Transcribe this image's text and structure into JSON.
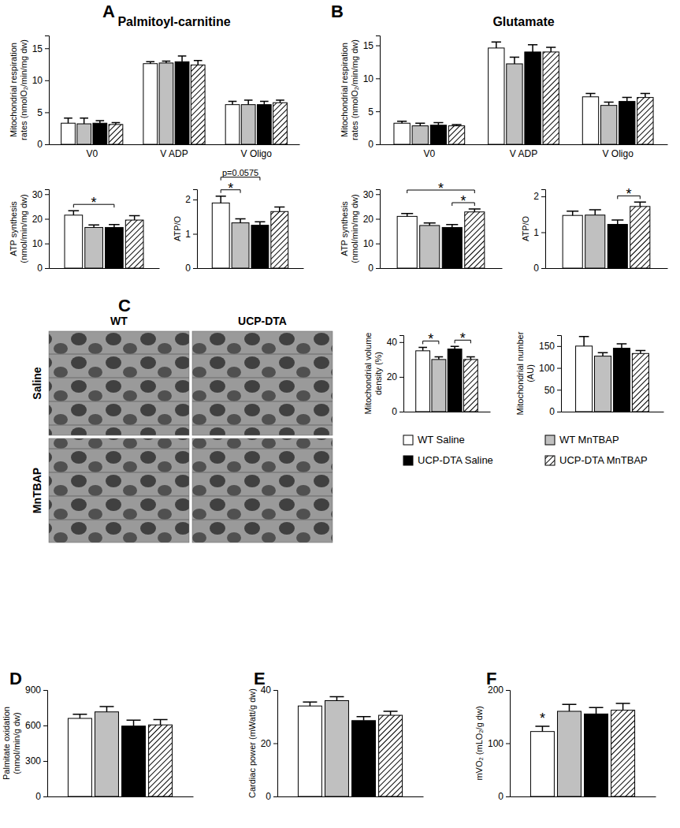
{
  "panel_labels": [
    "A",
    "B",
    "C",
    "D",
    "E",
    "F"
  ],
  "micrographs": {
    "columns": [
      "WT",
      "UCP-DTA"
    ],
    "rows": [
      "Saline",
      "MnTBAP"
    ]
  },
  "chart_data": [
    {
      "type": "bar",
      "title": "Palmitoyl-carnitine",
      "y_label": "Mitochondrial respiration rates (nmolO₂/min/mg dw)",
      "categories": [
        "V0",
        "V ADP",
        "V Oligo"
      ],
      "ylim": [
        0,
        17
      ],
      "yticks": [
        0,
        5,
        10,
        15
      ],
      "series": [
        {
          "name": "WT Saline",
          "color": "#ffffff",
          "values": [
            3.3,
            12.6,
            6.2
          ],
          "errors": [
            0.8,
            0.3,
            0.5
          ]
        },
        {
          "name": "WT MnTBAP",
          "color": "#c0c0c0",
          "values": [
            3.2,
            12.7,
            6.2
          ],
          "errors": [
            0.9,
            0.3,
            0.7
          ]
        },
        {
          "name": "UCP-DTA Saline",
          "color": "#000000",
          "values": [
            3.3,
            12.9,
            6.2
          ],
          "errors": [
            0.4,
            0.9,
            0.5
          ]
        },
        {
          "name": "UCP-DTA MnTBAP",
          "color": "#000000",
          "values": [
            3.1,
            12.4,
            6.5
          ],
          "errors": [
            0.3,
            0.7,
            0.4
          ]
        }
      ]
    },
    {
      "type": "bar",
      "y_label": "ATP synthesis (nmol/min/mg dw)",
      "categories": [
        null
      ],
      "ylim": [
        0,
        32
      ],
      "yticks": [
        0,
        10,
        20,
        30
      ],
      "series": [
        {
          "color": "#ffffff",
          "values": [
            21.5
          ],
          "errors": [
            1.8
          ]
        },
        {
          "color": "#c0c0c0",
          "values": [
            16.5
          ],
          "errors": [
            1.0
          ]
        },
        {
          "color": "#000000",
          "values": [
            16.5
          ],
          "errors": [
            1.2
          ]
        },
        {
          "color": "#000000",
          "values": [
            19.5
          ],
          "errors": [
            1.8
          ]
        }
      ],
      "annotations": [
        {
          "text": "*",
          "from": 0,
          "to": 2
        }
      ]
    },
    {
      "type": "bar",
      "y_label": "ATP/O",
      "categories": [
        null
      ],
      "ylim": [
        0,
        2.3
      ],
      "yticks": [
        0,
        1,
        2
      ],
      "series": [
        {
          "color": "#ffffff",
          "values": [
            1.9
          ],
          "errors": [
            0.2
          ]
        },
        {
          "color": "#c0c0c0",
          "values": [
            1.32
          ],
          "errors": [
            0.12
          ]
        },
        {
          "color": "#000000",
          "values": [
            1.25
          ],
          "errors": [
            0.1
          ]
        },
        {
          "color": "#000000",
          "values": [
            1.65
          ],
          "errors": [
            0.13
          ]
        }
      ],
      "annotations": [
        {
          "text": "*",
          "from": 0,
          "to": 1
        },
        {
          "text": "p=0.0575",
          "from": 0,
          "to": 2
        }
      ]
    },
    {
      "type": "bar",
      "title": "Glutamate",
      "y_label": "Mitochondrial respiration rates (nmolO₂/min/mg dw)",
      "categories": [
        "V0",
        "V ADP",
        "V Oligo"
      ],
      "ylim": [
        0,
        16.5
      ],
      "yticks": [
        0,
        5,
        10,
        15
      ],
      "series": [
        {
          "color": "#ffffff",
          "values": [
            3.2,
            14.6,
            7.2
          ],
          "errors": [
            0.3,
            0.9,
            0.5
          ]
        },
        {
          "color": "#c0c0c0",
          "values": [
            2.8,
            12.2,
            5.9
          ],
          "errors": [
            0.4,
            1.0,
            0.5
          ]
        },
        {
          "color": "#000000",
          "values": [
            2.9,
            14.0,
            6.5
          ],
          "errors": [
            0.4,
            1.1,
            0.6
          ]
        },
        {
          "color": "#000000",
          "values": [
            2.8,
            14.0,
            7.1
          ],
          "errors": [
            0.2,
            0.7,
            0.6
          ]
        }
      ]
    },
    {
      "type": "bar",
      "y_label": "ATP synthesis (nmol/min/mg dw)",
      "categories": [
        null
      ],
      "ylim": [
        0,
        32
      ],
      "yticks": [
        0,
        10,
        20,
        30
      ],
      "series": [
        {
          "color": "#ffffff",
          "values": [
            21.0
          ],
          "errors": [
            1.2
          ]
        },
        {
          "color": "#c0c0c0",
          "values": [
            17.3
          ],
          "errors": [
            1.0
          ]
        },
        {
          "color": "#000000",
          "values": [
            16.5
          ],
          "errors": [
            1.2
          ]
        },
        {
          "color": "#000000",
          "values": [
            22.8
          ],
          "errors": [
            1.2
          ]
        }
      ],
      "annotations": [
        {
          "text": "*",
          "from": 2,
          "to": 3
        },
        {
          "text": "*",
          "from": 0,
          "to": 3
        }
      ]
    },
    {
      "type": "bar",
      "y_label": "ATP/O",
      "categories": [
        null
      ],
      "ylim": [
        0,
        2.2
      ],
      "yticks": [
        0,
        1,
        2
      ],
      "series": [
        {
          "color": "#ffffff",
          "values": [
            1.47
          ],
          "errors": [
            0.12
          ]
        },
        {
          "color": "#c0c0c0",
          "values": [
            1.48
          ],
          "errors": [
            0.15
          ]
        },
        {
          "color": "#000000",
          "values": [
            1.22
          ],
          "errors": [
            0.12
          ]
        },
        {
          "color": "#000000",
          "values": [
            1.72
          ],
          "errors": [
            0.12
          ]
        }
      ],
      "annotations": [
        {
          "text": "*",
          "from": 2,
          "to": 3
        }
      ]
    },
    {
      "type": "bar",
      "y_label": "Mitochondrial volume density (%)",
      "categories": [
        null
      ],
      "ylim": [
        0,
        44
      ],
      "yticks": [
        0,
        20,
        40
      ],
      "series": [
        {
          "color": "#ffffff",
          "values": [
            35
          ],
          "errors": [
            2.0
          ]
        },
        {
          "color": "#c0c0c0",
          "values": [
            30
          ],
          "errors": [
            1.5
          ]
        },
        {
          "color": "#000000",
          "values": [
            36
          ],
          "errors": [
            1.5
          ]
        },
        {
          "color": "#000000",
          "values": [
            30
          ],
          "errors": [
            1.5
          ]
        }
      ],
      "annotations": [
        {
          "text": "*",
          "from": 0,
          "to": 1
        },
        {
          "text": "*",
          "from": 2,
          "to": 3
        }
      ]
    },
    {
      "type": "bar",
      "y_label": "Mitochondrial number (AU)",
      "categories": [
        null
      ],
      "ylim": [
        0,
        175
      ],
      "yticks": [
        0,
        50,
        100,
        150
      ],
      "series": [
        {
          "color": "#ffffff",
          "values": [
            150
          ],
          "errors": [
            22
          ]
        },
        {
          "color": "#c0c0c0",
          "values": [
            127
          ],
          "errors": [
            8
          ]
        },
        {
          "color": "#000000",
          "values": [
            145
          ],
          "errors": [
            10
          ]
        },
        {
          "color": "#000000",
          "values": [
            133
          ],
          "errors": [
            7
          ]
        }
      ]
    },
    {
      "type": "bar",
      "y_label": "Palmitate oxidation (nmol/min/g dw)",
      "categories": [
        null
      ],
      "ylim": [
        0,
        900
      ],
      "yticks": [
        0,
        300,
        600,
        900
      ],
      "series": [
        {
          "color": "#ffffff",
          "values": [
            660
          ],
          "errors": [
            35
          ]
        },
        {
          "color": "#c0c0c0",
          "values": [
            715
          ],
          "errors": [
            45
          ]
        },
        {
          "color": "#000000",
          "values": [
            595
          ],
          "errors": [
            50
          ]
        },
        {
          "color": "#000000",
          "values": [
            605
          ],
          "errors": [
            45
          ]
        }
      ]
    },
    {
      "type": "bar",
      "y_label": "Cardiac power (mWatt/g dw)",
      "categories": [
        null
      ],
      "ylim": [
        0,
        40
      ],
      "yticks": [
        0,
        20,
        40
      ],
      "series": [
        {
          "color": "#ffffff",
          "values": [
            34
          ],
          "errors": [
            1.5
          ]
        },
        {
          "color": "#c0c0c0",
          "values": [
            36
          ],
          "errors": [
            1.5
          ]
        },
        {
          "color": "#000000",
          "values": [
            28.5
          ],
          "errors": [
            1.5
          ]
        },
        {
          "color": "#000000",
          "values": [
            30.5
          ],
          "errors": [
            1.5
          ]
        }
      ]
    },
    {
      "type": "bar",
      "y_label": "mVO₂ (mLO₂/g dw)",
      "categories": [
        null
      ],
      "ylim": [
        0,
        200
      ],
      "yticks": [
        0,
        100,
        200
      ],
      "series": [
        {
          "color": "#ffffff",
          "values": [
            122
          ],
          "errors": [
            10
          ]
        },
        {
          "color": "#c0c0c0",
          "values": [
            160
          ],
          "errors": [
            13
          ]
        },
        {
          "color": "#000000",
          "values": [
            155
          ],
          "errors": [
            12
          ]
        },
        {
          "color": "#000000",
          "values": [
            162
          ],
          "errors": [
            13
          ]
        }
      ],
      "annotations": [
        {
          "text": "*",
          "from": 0,
          "to": 0
        }
      ]
    }
  ]
}
